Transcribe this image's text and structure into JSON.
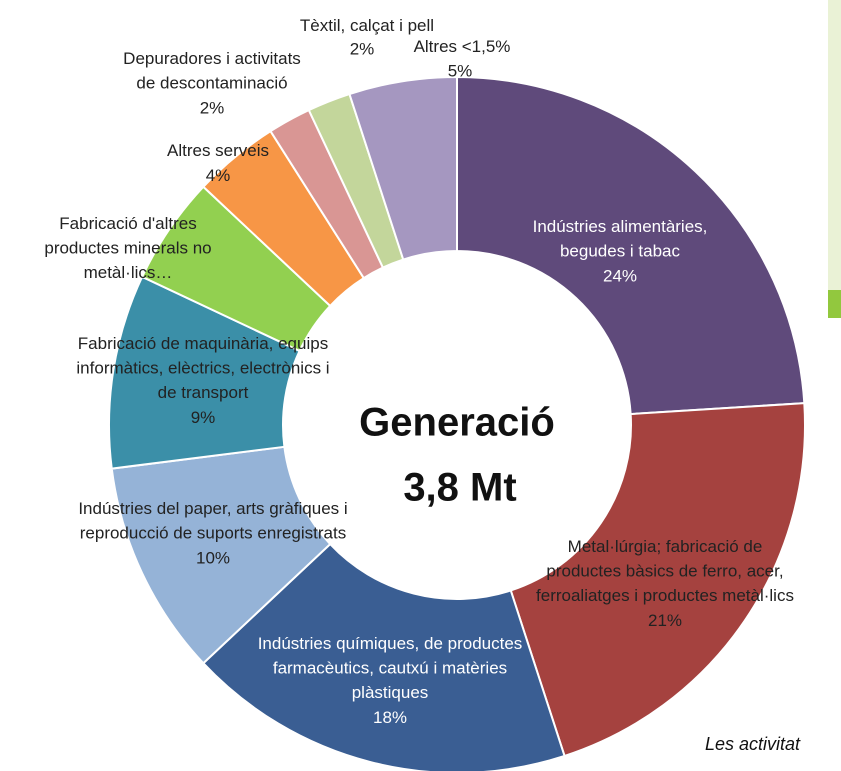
{
  "chart_data": {
    "type": "donut",
    "center_text": [
      "Generació",
      "3,8 Mt"
    ],
    "categories": [
      "Indústries alimentàries,\nbegudes i tabac",
      "Metal·lúrgia; fabricació de\nproductes bàsics de ferro, acer,\nferroaliatges i productes metàl·lics",
      "Indústries químiques, de productes\nfarmacèutics, cautxú i matèries\nplàstiques",
      "Indústries del paper, arts gràfiques i\nreproducció de suports enregistrats",
      "Fabricació de maquinària, equips\ninformàtics, elèctrics, electrònics i\nde transport",
      "Fabricació d'altres\nproductes minerals no\nmetàl·lics…",
      "Altres serveis",
      "Depuradores i activitats\nde descontaminació",
      "Tèxtil, calçat i pell",
      "Altres  <1,5%"
    ],
    "values": [
      24,
      21,
      18,
      10,
      9,
      5,
      4,
      2,
      2,
      5
    ],
    "value_labels": [
      "24%",
      "21%",
      "18%",
      "10%",
      "9%",
      null,
      "4%",
      "2%",
      "2%",
      "5%"
    ],
    "colors": [
      "#5f4a7b",
      "#a5423f",
      "#3a5e93",
      "#95b3d7",
      "#3b8fa8",
      "#92d050",
      "#f79646",
      "#d99694",
      "#c3d69b",
      "#a597c0"
    ],
    "side_text": "Les activitat"
  }
}
